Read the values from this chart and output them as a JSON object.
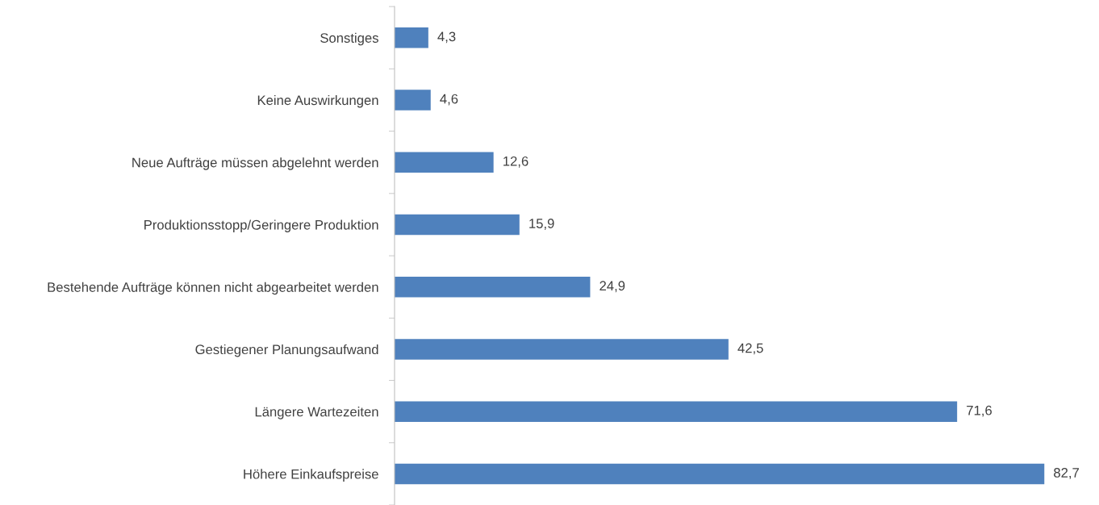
{
  "chart_data": {
    "type": "bar",
    "orientation": "horizontal",
    "categories": [
      "Sonstiges",
      "Keine Auswirkungen",
      "Neue Aufträge müssen abgelehnt werden",
      "Produktionsstopp/Geringere Produktion",
      "Bestehende Aufträge können nicht abgearbeitet werden",
      "Gestiegener Planungsaufwand",
      "Längere Wartezeiten",
      "Höhere Einkaufspreise"
    ],
    "values": [
      4.3,
      4.6,
      12.6,
      15.9,
      24.9,
      42.5,
      71.6,
      82.7
    ],
    "value_labels": [
      "4,3",
      "4,6",
      "12,6",
      "15,9",
      "24,9",
      "42,5",
      "71,6",
      "82,7"
    ],
    "color": "#4f81bd",
    "tick_labels": "y",
    "grid": false,
    "legend": false
  }
}
